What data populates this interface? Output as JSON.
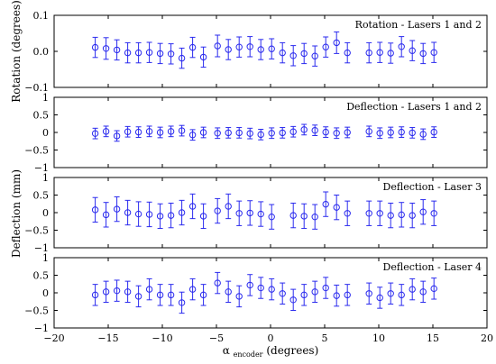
{
  "chart_data": [
    {
      "type": "scatter",
      "title": "Rotation - Lasers 1 and 2",
      "ylabel": "Rotation (degrees)",
      "xlim": [
        -20,
        20
      ],
      "ylim": [
        -0.1,
        0.1
      ],
      "yticks": [
        -0.1,
        0.0,
        0.1
      ],
      "ytick_labels": [
        "−0.1",
        "0.0",
        "0.1"
      ],
      "series_color": "#2a2aee",
      "points": [
        {
          "x": -16.2,
          "y": 0.011,
          "err": 0.028
        },
        {
          "x": -15.2,
          "y": 0.008,
          "err": 0.03
        },
        {
          "x": -14.2,
          "y": 0.004,
          "err": 0.028
        },
        {
          "x": -13.2,
          "y": -0.004,
          "err": 0.028
        },
        {
          "x": -12.2,
          "y": -0.004,
          "err": 0.028
        },
        {
          "x": -11.2,
          "y": -0.003,
          "err": 0.028
        },
        {
          "x": -10.2,
          "y": -0.006,
          "err": 0.028
        },
        {
          "x": -9.2,
          "y": -0.007,
          "err": 0.028
        },
        {
          "x": -8.2,
          "y": -0.019,
          "err": 0.028
        },
        {
          "x": -7.2,
          "y": 0.011,
          "err": 0.028
        },
        {
          "x": -6.2,
          "y": -0.016,
          "err": 0.028
        },
        {
          "x": -4.9,
          "y": 0.015,
          "err": 0.03
        },
        {
          "x": -3.9,
          "y": 0.005,
          "err": 0.028
        },
        {
          "x": -2.9,
          "y": 0.012,
          "err": 0.028
        },
        {
          "x": -1.9,
          "y": 0.013,
          "err": 0.028
        },
        {
          "x": -0.9,
          "y": 0.005,
          "err": 0.028
        },
        {
          "x": 0.1,
          "y": 0.007,
          "err": 0.028
        },
        {
          "x": 1.1,
          "y": -0.004,
          "err": 0.028
        },
        {
          "x": 2.1,
          "y": -0.012,
          "err": 0.028
        },
        {
          "x": 3.1,
          "y": -0.006,
          "err": 0.028
        },
        {
          "x": 4.1,
          "y": -0.013,
          "err": 0.028
        },
        {
          "x": 5.1,
          "y": 0.012,
          "err": 0.028
        },
        {
          "x": 6.1,
          "y": 0.024,
          "err": 0.03
        },
        {
          "x": 7.1,
          "y": -0.004,
          "err": 0.028
        },
        {
          "x": 9.1,
          "y": -0.004,
          "err": 0.028
        },
        {
          "x": 10.1,
          "y": -0.003,
          "err": 0.028
        },
        {
          "x": 11.1,
          "y": -0.005,
          "err": 0.028
        },
        {
          "x": 12.1,
          "y": 0.013,
          "err": 0.028
        },
        {
          "x": 13.1,
          "y": 0.002,
          "err": 0.028
        },
        {
          "x": 14.1,
          "y": -0.006,
          "err": 0.028
        },
        {
          "x": 15.1,
          "y": -0.003,
          "err": 0.028
        }
      ]
    },
    {
      "type": "scatter",
      "title": "Deflection - Lasers 1 and 2",
      "ylabel": "",
      "xlim": [
        -20,
        20
      ],
      "ylim": [
        -1,
        1
      ],
      "yticks": [
        -1,
        -0.5,
        0,
        0.5,
        1
      ],
      "ytick_labels": [
        "−1",
        "−0.5",
        "0",
        "0.5",
        "1"
      ],
      "series_color": "#2a2aee",
      "points": [
        {
          "x": -16.2,
          "y": -0.03,
          "err": 0.15
        },
        {
          "x": -15.2,
          "y": 0.03,
          "err": 0.15
        },
        {
          "x": -14.2,
          "y": -0.1,
          "err": 0.15
        },
        {
          "x": -13.2,
          "y": 0.02,
          "err": 0.15
        },
        {
          "x": -12.2,
          "y": 0.01,
          "err": 0.15
        },
        {
          "x": -11.2,
          "y": 0.03,
          "err": 0.15
        },
        {
          "x": -10.2,
          "y": 0.0,
          "err": 0.15
        },
        {
          "x": -9.2,
          "y": 0.03,
          "err": 0.15
        },
        {
          "x": -8.2,
          "y": 0.05,
          "err": 0.15
        },
        {
          "x": -7.2,
          "y": -0.07,
          "err": 0.15
        },
        {
          "x": -6.2,
          "y": 0.0,
          "err": 0.15
        },
        {
          "x": -4.9,
          "y": -0.02,
          "err": 0.15
        },
        {
          "x": -3.9,
          "y": -0.01,
          "err": 0.15
        },
        {
          "x": -2.9,
          "y": -0.01,
          "err": 0.15
        },
        {
          "x": -1.9,
          "y": -0.03,
          "err": 0.15
        },
        {
          "x": -0.9,
          "y": -0.06,
          "err": 0.15
        },
        {
          "x": 0.1,
          "y": -0.02,
          "err": 0.15
        },
        {
          "x": 1.1,
          "y": -0.01,
          "err": 0.15
        },
        {
          "x": 2.1,
          "y": 0.02,
          "err": 0.15
        },
        {
          "x": 3.1,
          "y": 0.08,
          "err": 0.15
        },
        {
          "x": 4.1,
          "y": 0.06,
          "err": 0.15
        },
        {
          "x": 5.1,
          "y": 0.01,
          "err": 0.15
        },
        {
          "x": 6.1,
          "y": -0.02,
          "err": 0.15
        },
        {
          "x": 7.1,
          "y": 0.0,
          "err": 0.15
        },
        {
          "x": 9.1,
          "y": 0.03,
          "err": 0.15
        },
        {
          "x": 10.1,
          "y": -0.02,
          "err": 0.15
        },
        {
          "x": 11.1,
          "y": 0.0,
          "err": 0.15
        },
        {
          "x": 12.1,
          "y": 0.01,
          "err": 0.15
        },
        {
          "x": 13.1,
          "y": -0.01,
          "err": 0.15
        },
        {
          "x": 14.1,
          "y": -0.05,
          "err": 0.15
        },
        {
          "x": 15.1,
          "y": 0.01,
          "err": 0.15
        }
      ]
    },
    {
      "type": "scatter",
      "title": "Deflection - Laser 3",
      "ylabel": "Deflection (mm)",
      "xlim": [
        -20,
        20
      ],
      "ylim": [
        -1,
        1
      ],
      "yticks": [
        -1,
        -0.5,
        0,
        0.5,
        1
      ],
      "ytick_labels": [
        "−1",
        "−0.5",
        "0",
        "0.5",
        "1"
      ],
      "series_color": "#2a2aee",
      "points": [
        {
          "x": -16.2,
          "y": 0.08,
          "err": 0.35
        },
        {
          "x": -15.2,
          "y": -0.06,
          "err": 0.35
        },
        {
          "x": -14.2,
          "y": 0.1,
          "err": 0.35
        },
        {
          "x": -13.2,
          "y": 0.0,
          "err": 0.35
        },
        {
          "x": -12.2,
          "y": -0.04,
          "err": 0.35
        },
        {
          "x": -11.2,
          "y": -0.05,
          "err": 0.35
        },
        {
          "x": -10.2,
          "y": -0.1,
          "err": 0.35
        },
        {
          "x": -9.2,
          "y": -0.08,
          "err": 0.35
        },
        {
          "x": -8.2,
          "y": 0.0,
          "err": 0.35
        },
        {
          "x": -7.2,
          "y": 0.18,
          "err": 0.35
        },
        {
          "x": -6.2,
          "y": -0.1,
          "err": 0.35
        },
        {
          "x": -4.9,
          "y": 0.05,
          "err": 0.35
        },
        {
          "x": -3.9,
          "y": 0.18,
          "err": 0.35
        },
        {
          "x": -2.9,
          "y": -0.02,
          "err": 0.35
        },
        {
          "x": -1.9,
          "y": -0.01,
          "err": 0.35
        },
        {
          "x": -0.9,
          "y": -0.04,
          "err": 0.35
        },
        {
          "x": 0.1,
          "y": -0.12,
          "err": 0.35
        },
        {
          "x": 2.1,
          "y": -0.08,
          "err": 0.35
        },
        {
          "x": 3.1,
          "y": -0.1,
          "err": 0.35
        },
        {
          "x": 4.1,
          "y": -0.12,
          "err": 0.35
        },
        {
          "x": 5.1,
          "y": 0.24,
          "err": 0.35
        },
        {
          "x": 6.1,
          "y": 0.15,
          "err": 0.35
        },
        {
          "x": 7.1,
          "y": -0.02,
          "err": 0.35
        },
        {
          "x": 9.1,
          "y": -0.02,
          "err": 0.35
        },
        {
          "x": 10.1,
          "y": -0.02,
          "err": 0.35
        },
        {
          "x": 11.1,
          "y": -0.08,
          "err": 0.35
        },
        {
          "x": 12.1,
          "y": -0.06,
          "err": 0.35
        },
        {
          "x": 13.1,
          "y": -0.08,
          "err": 0.35
        },
        {
          "x": 14.1,
          "y": 0.02,
          "err": 0.35
        },
        {
          "x": 15.1,
          "y": -0.02,
          "err": 0.35
        }
      ]
    },
    {
      "type": "scatter",
      "title": "Deflection - Laser 4",
      "ylabel": "",
      "xlabel": "αencoder (degrees)",
      "xlabel_main": "α",
      "xlabel_sub": "encoder",
      "xlabel_unit": " (degrees)",
      "xlim": [
        -20,
        20
      ],
      "xticks": [
        -20,
        -15,
        -10,
        -5,
        0,
        5,
        10,
        15,
        20
      ],
      "xtick_labels": [
        "−20",
        "−15",
        "−10",
        "−5",
        "0",
        "5",
        "10",
        "15",
        "20"
      ],
      "ylim": [
        -1,
        1
      ],
      "yticks": [
        -1,
        -0.5,
        0,
        0.5,
        1
      ],
      "ytick_labels": [
        "−1",
        "−0.5",
        "0",
        "0.5",
        "1"
      ],
      "series_color": "#2a2aee",
      "points": [
        {
          "x": -16.2,
          "y": -0.06,
          "err": 0.3
        },
        {
          "x": -15.2,
          "y": 0.03,
          "err": 0.3
        },
        {
          "x": -14.2,
          "y": 0.06,
          "err": 0.3
        },
        {
          "x": -13.2,
          "y": 0.03,
          "err": 0.3
        },
        {
          "x": -12.2,
          "y": -0.1,
          "err": 0.3
        },
        {
          "x": -11.2,
          "y": 0.1,
          "err": 0.3
        },
        {
          "x": -10.2,
          "y": -0.06,
          "err": 0.3
        },
        {
          "x": -9.2,
          "y": -0.06,
          "err": 0.3
        },
        {
          "x": -8.2,
          "y": -0.28,
          "err": 0.3
        },
        {
          "x": -7.2,
          "y": 0.1,
          "err": 0.3
        },
        {
          "x": -6.2,
          "y": -0.06,
          "err": 0.3
        },
        {
          "x": -4.9,
          "y": 0.28,
          "err": 0.3
        },
        {
          "x": -3.9,
          "y": 0.03,
          "err": 0.3
        },
        {
          "x": -2.9,
          "y": -0.1,
          "err": 0.3
        },
        {
          "x": -1.9,
          "y": 0.22,
          "err": 0.3
        },
        {
          "x": -0.9,
          "y": 0.14,
          "err": 0.3
        },
        {
          "x": 0.1,
          "y": 0.1,
          "err": 0.3
        },
        {
          "x": 1.1,
          "y": -0.02,
          "err": 0.3
        },
        {
          "x": 2.1,
          "y": -0.2,
          "err": 0.3
        },
        {
          "x": 3.1,
          "y": -0.06,
          "err": 0.3
        },
        {
          "x": 4.1,
          "y": 0.03,
          "err": 0.3
        },
        {
          "x": 5.1,
          "y": 0.14,
          "err": 0.3
        },
        {
          "x": 6.1,
          "y": -0.08,
          "err": 0.3
        },
        {
          "x": 7.1,
          "y": -0.06,
          "err": 0.3
        },
        {
          "x": 9.1,
          "y": -0.02,
          "err": 0.3
        },
        {
          "x": 10.1,
          "y": -0.14,
          "err": 0.3
        },
        {
          "x": 11.1,
          "y": -0.02,
          "err": 0.3
        },
        {
          "x": 12.1,
          "y": -0.06,
          "err": 0.3
        },
        {
          "x": 13.1,
          "y": 0.1,
          "err": 0.3
        },
        {
          "x": 14.1,
          "y": 0.03,
          "err": 0.3
        },
        {
          "x": 15.1,
          "y": 0.12,
          "err": 0.3
        }
      ]
    }
  ]
}
